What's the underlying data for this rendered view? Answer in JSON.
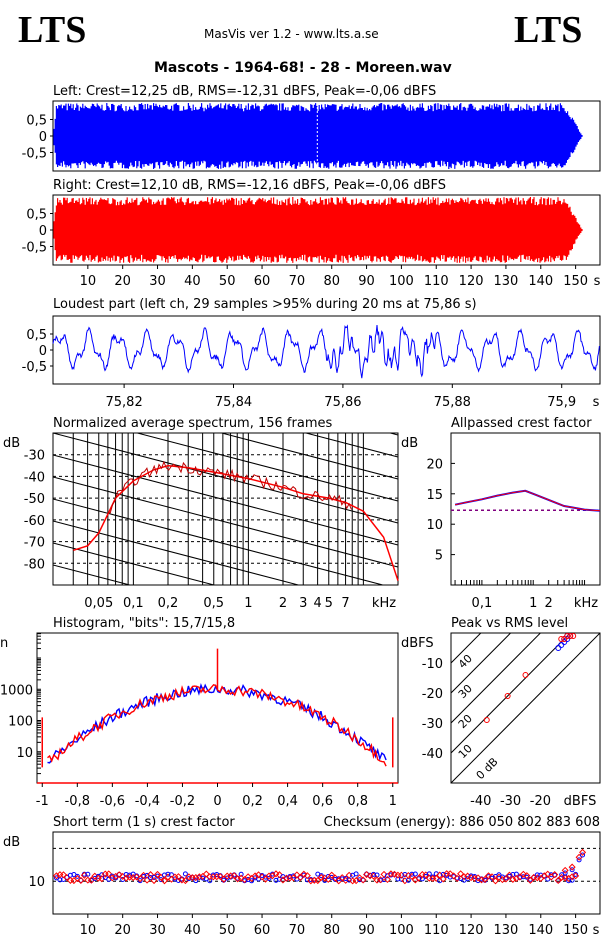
{
  "header": {
    "logo_left": "LTS",
    "logo_right": "LTS",
    "app_title": "MasVis ver 1.2 - www.lts.a.se",
    "track_title": "Mascots - 1964-68! - 28 - Moreen.wav"
  },
  "panels": {
    "left": {
      "title": "Left: Crest=12,25 dB, RMS=-12,31 dBFS, Peak=-0,06 dBFS",
      "color": "#0000ff"
    },
    "right": {
      "title": "Right: Crest=12,10 dB, RMS=-12,16 dBFS, Peak=-0,06 dBFS",
      "color": "#ff0000"
    },
    "loudest": {
      "title": "Loudest part (left  ch, 29 samples >95% during 20 ms at 75,86 s)"
    },
    "spectrum": {
      "title": "Normalized average spectrum, 156 frames"
    },
    "allpass": {
      "title": "Allpassed crest factor"
    },
    "histogram": {
      "title": "Histogram, \"bits\": 15,7/15,8"
    },
    "pvr": {
      "title": "Peak vs RMS level"
    },
    "shortterm": {
      "title": "Short term (1 s) crest factor",
      "checksum": "Checksum (energy):   886 050 802 883 608"
    }
  },
  "chart_data": [
    {
      "type": "area",
      "name": "left-waveform",
      "xlabel": "",
      "ylabel": "",
      "yticks": [
        "0,5",
        "0",
        "-0,5"
      ],
      "ylim": [
        -1,
        1
      ],
      "xlim": [
        0,
        157
      ],
      "envelope": {
        "peak": 1.0,
        "fade_out_start_s": 147,
        "end_s": 152
      },
      "marker_s": 75.86
    },
    {
      "type": "area",
      "name": "right-waveform",
      "yticks": [
        "0,5",
        "0",
        "-0,5"
      ],
      "ylim": [
        -1,
        1
      ],
      "xlim": [
        0,
        157
      ],
      "xticks": [
        "10",
        "20",
        "30",
        "40",
        "50",
        "60",
        "70",
        "80",
        "90",
        "100",
        "110",
        "120",
        "130",
        "140",
        "150"
      ],
      "xunit": "s",
      "envelope": {
        "peak": 1.0,
        "fade_out_start_s": 147,
        "end_s": 152
      }
    },
    {
      "type": "line",
      "name": "loudest-part",
      "xlim": [
        75.807,
        75.907
      ],
      "ylim": [
        -1,
        1
      ],
      "xticks": [
        "75,82",
        "75,84",
        "75,86",
        "75,88",
        "75,9"
      ],
      "xunit": "s",
      "yticks": [
        "0,5",
        "0",
        "-0,5"
      ]
    },
    {
      "type": "line",
      "name": "spectrum",
      "ylabel": "dB",
      "yticks": [
        "-30",
        "-40",
        "-50",
        "-60",
        "-70",
        "-80"
      ],
      "xticks": [
        "0,05",
        "0,1",
        "0,2",
        "0,5",
        "1",
        "2",
        "3",
        "4",
        "5",
        "7"
      ],
      "xunit": "kHz",
      "ylim": [
        -90,
        -20
      ],
      "series": [
        {
          "values_khz": [
            0.03,
            0.04,
            0.05,
            0.07,
            0.1,
            0.15,
            0.2,
            0.3,
            0.5,
            1,
            2,
            3,
            5,
            7,
            10,
            15,
            20
          ],
          "values_db": [
            -74,
            -72,
            -66,
            -50,
            -42,
            -37,
            -35,
            -36,
            -38,
            -41,
            -45,
            -48,
            -50,
            -52,
            -56,
            -68,
            -88
          ]
        }
      ]
    },
    {
      "type": "line",
      "name": "allpass-crest",
      "ylabel": "dB",
      "yticks": [
        "20",
        "15",
        "10",
        "5"
      ],
      "ylim": [
        0,
        25
      ],
      "xticks": [
        "0,1",
        "1",
        "2"
      ],
      "xunit": "kHz",
      "reference_db": 12.3,
      "series": [
        {
          "values_khz": [
            0.03,
            0.05,
            0.1,
            0.2,
            0.4,
            0.7,
            1,
            2,
            4,
            10,
            20
          ],
          "values_db": [
            13.2,
            13.6,
            14.1,
            14.7,
            15.2,
            15.5,
            15.0,
            14.0,
            13.0,
            12.4,
            12.2
          ]
        }
      ]
    },
    {
      "type": "line",
      "name": "histogram",
      "ylabel": "n",
      "yticks": [
        "1000",
        "100",
        "10"
      ],
      "xticks": [
        "-1",
        "-0,8",
        "-0,6",
        "-0,4",
        "-0,2",
        "0",
        "0,2",
        "0,4",
        "0,6",
        "0,8",
        "1"
      ],
      "xlim": [
        -1.03,
        1.03
      ],
      "ylim_log10": [
        0,
        4.8
      ],
      "peak_log10": 3.0,
      "edge_log10": 0.5
    },
    {
      "type": "scatter",
      "name": "peak-vs-rms",
      "ylabel": "dBFS",
      "yticks": [
        "-10",
        "-20",
        "-30",
        "-40"
      ],
      "xticks": [
        "-40",
        "-30",
        "-20"
      ],
      "xunit": "dBFS",
      "xlim": [
        -50,
        0
      ],
      "ylim": [
        -50,
        0
      ],
      "diagonal_labels": [
        "40",
        "30",
        "20",
        "10",
        "0 dB"
      ],
      "series": [
        {
          "name": "left",
          "color": "#0000ff",
          "points": [
            [
              -12,
              -3
            ],
            [
              -11,
              -2
            ],
            [
              -13,
              -4
            ],
            [
              -10,
              -1
            ],
            [
              -14,
              -5
            ],
            [
              -12,
              -2
            ],
            [
              -11,
              -1
            ]
          ]
        },
        {
          "name": "right",
          "color": "#ff0000",
          "points": [
            [
              -31,
              -21
            ],
            [
              -38,
              -29
            ],
            [
              -25,
              -14
            ],
            [
              -12,
              -2
            ],
            [
              -11,
              -1
            ],
            [
              -10,
              -1
            ],
            [
              -13,
              -2
            ],
            [
              -9,
              -1
            ]
          ]
        }
      ]
    },
    {
      "type": "scatter",
      "name": "short-term-crest",
      "ylabel": "dB",
      "yticks": [
        "10"
      ],
      "ylim": [
        0,
        25
      ],
      "xticks": [
        "10",
        "20",
        "30",
        "40",
        "50",
        "60",
        "70",
        "80",
        "90",
        "100",
        "110",
        "120",
        "130",
        "140",
        "150"
      ],
      "xunit": "s",
      "xlim": [
        0,
        157
      ],
      "mean_db": 11.2,
      "end_points": [
        [
          147,
          12.5
        ],
        [
          149,
          13.5
        ],
        [
          151,
          16.5
        ],
        [
          152,
          18
        ]
      ]
    }
  ]
}
